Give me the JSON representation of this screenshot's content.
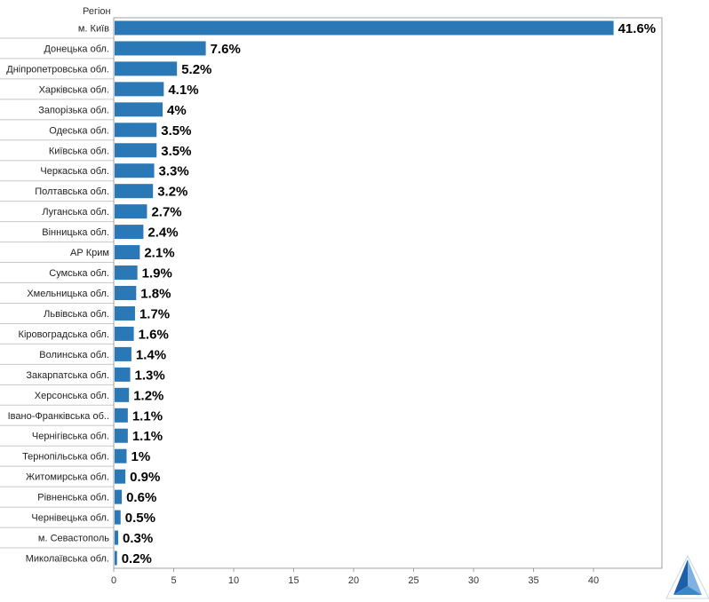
{
  "chart_data": {
    "type": "bar",
    "orientation": "horizontal",
    "category_header": "Регіон",
    "categories": [
      "м. Київ",
      "Донецька обл.",
      "Дніпропетровська обл.",
      "Харківська обл.",
      "Запорізька обл.",
      "Одеська обл.",
      "Київська обл.",
      "Черкаська обл.",
      "Полтавська обл.",
      "Луганська обл.",
      "Вінницька обл.",
      "АР Крим",
      "Сумська обл.",
      "Хмельницька обл.",
      "Львівська обл.",
      "Кіровоградська обл.",
      "Волинська обл.",
      "Закарпатська обл.",
      "Херсонська обл.",
      "Івано-Франківська об..",
      "Чернігівська обл.",
      "Тернопільська обл.",
      "Житомирська обл.",
      "Рівненська обл.",
      "Чернівецька обл.",
      "м. Севастополь",
      "Миколаївська обл."
    ],
    "values": [
      41.6,
      7.6,
      5.2,
      4.1,
      4,
      3.5,
      3.5,
      3.3,
      3.2,
      2.7,
      2.4,
      2.1,
      1.9,
      1.8,
      1.7,
      1.6,
      1.4,
      1.3,
      1.2,
      1.1,
      1.1,
      1,
      0.9,
      0.6,
      0.5,
      0.3,
      0.2
    ],
    "value_labels": [
      "41.6%",
      "7.6%",
      "5.2%",
      "4.1%",
      "4%",
      "3.5%",
      "3.5%",
      "3.3%",
      "3.2%",
      "2.7%",
      "2.4%",
      "2.1%",
      "1.9%",
      "1.8%",
      "1.7%",
      "1.6%",
      "1.4%",
      "1.3%",
      "1.2%",
      "1.1%",
      "1.1%",
      "1%",
      "0.9%",
      "0.6%",
      "0.5%",
      "0.3%",
      "0.2%"
    ],
    "xlim": [
      0,
      46
    ],
    "x_ticks": [
      0,
      5,
      10,
      15,
      20,
      25,
      30,
      35,
      40
    ],
    "grid": false,
    "bar_color": "#2a78b6"
  },
  "logo": {
    "name": "triangle-logo-icon",
    "colors": [
      "#1f5fa8",
      "#7fb2e0"
    ]
  }
}
